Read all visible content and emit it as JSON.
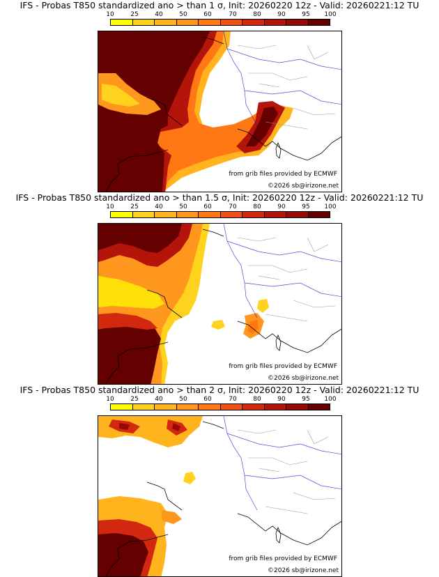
{
  "legend": {
    "ticks": [
      "10",
      "25",
      "40",
      "50",
      "60",
      "70",
      "80",
      "90",
      "95",
      "100"
    ],
    "colors": [
      "#ffff00",
      "#ffd21e",
      "#ffb41e",
      "#ff961e",
      "#ff7814",
      "#f05014",
      "#d2280f",
      "#b4140a",
      "#960a05",
      "#640000"
    ]
  },
  "panels": [
    {
      "title": "IFS - Probas T850  standardized ano > than 1 σ, Init: 20260220 12z - Valid: 20260221:12 TU"
    },
    {
      "title": "IFS - Probas T850  standardized ano > than 1.5 σ, Init: 20260220 12z - Valid: 20260221:12 TU"
    },
    {
      "title": "IFS - Probas T850  standardized ano > than 2 σ, Init: 20260220 12z - Valid: 20260221:12 TU"
    }
  ],
  "credits": {
    "source": "from grib files provided by ECMWF",
    "copyright": "©2026 sb@irizone.net"
  }
}
